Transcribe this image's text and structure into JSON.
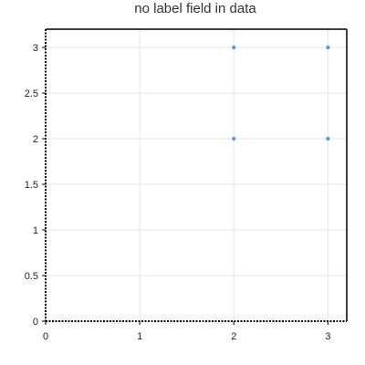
{
  "chart_data": {
    "type": "scatter",
    "title": "no label field in data",
    "xlabel": "",
    "ylabel": "",
    "xlim": [
      0,
      3.2
    ],
    "ylim": [
      0,
      3.2
    ],
    "x_ticks": [
      0,
      1,
      2,
      3
    ],
    "y_ticks": [
      0,
      0.5,
      1,
      1.5,
      2,
      2.5,
      3
    ],
    "x_tick_labels": [
      "0",
      "1",
      "2",
      "3"
    ],
    "y_tick_labels": [
      "0",
      "0.5",
      "1",
      "1.5",
      "2",
      "2.5",
      "3"
    ],
    "grid": true,
    "legend": "none",
    "series": [
      {
        "color": "#5b9bd5",
        "points": [
          {
            "x": 2,
            "y": 2
          },
          {
            "x": 2,
            "y": 3
          },
          {
            "x": 3,
            "y": 2
          },
          {
            "x": 3,
            "y": 3
          }
        ]
      }
    ]
  }
}
